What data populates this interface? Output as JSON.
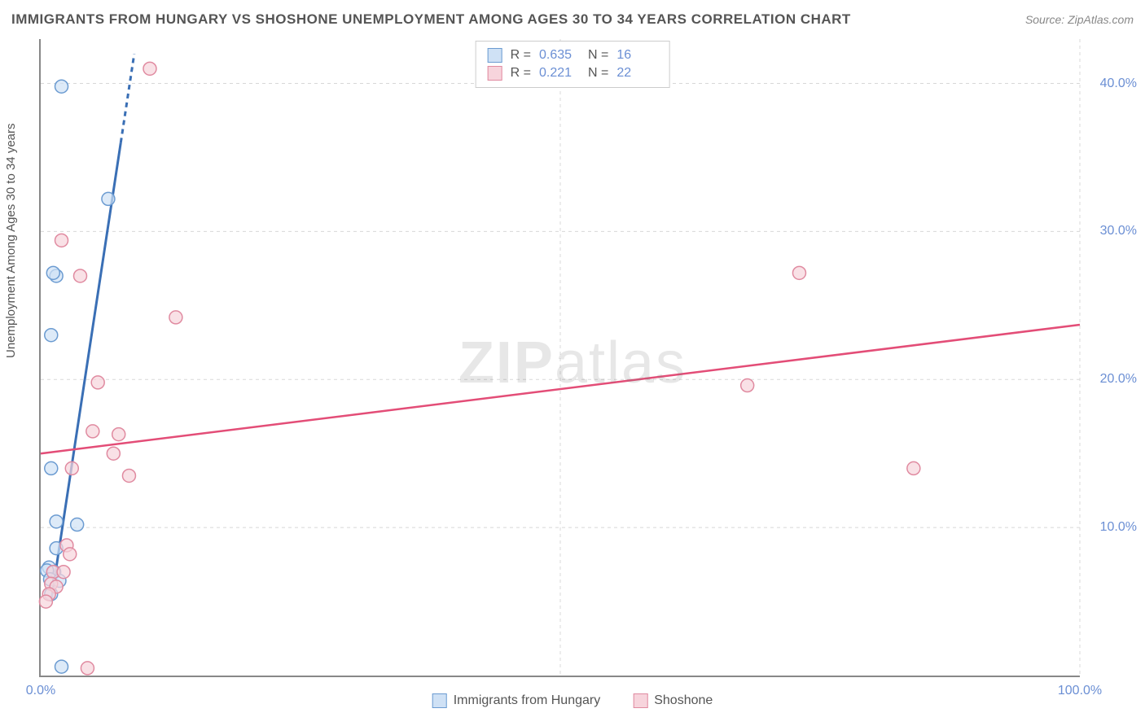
{
  "title": "IMMIGRANTS FROM HUNGARY VS SHOSHONE UNEMPLOYMENT AMONG AGES 30 TO 34 YEARS CORRELATION CHART",
  "source_label": "Source:",
  "source_value": "ZipAtlas.com",
  "y_axis_label": "Unemployment Among Ages 30 to 34 years",
  "watermark_bold": "ZIP",
  "watermark_light": "atlas",
  "chart": {
    "type": "scatter",
    "xlim": [
      0,
      100
    ],
    "ylim": [
      0,
      43
    ],
    "x_ticks": [
      0,
      50,
      100
    ],
    "x_tick_labels": [
      "0.0%",
      "",
      "100.0%"
    ],
    "y_ticks": [
      10,
      20,
      30,
      40
    ],
    "y_tick_labels": [
      "10.0%",
      "20.0%",
      "30.0%",
      "40.0%"
    ],
    "grid_color": "#d8d8d8",
    "grid_dash": "4,4",
    "background_color": "#ffffff",
    "marker_radius": 8,
    "marker_stroke_width": 1.5,
    "series": [
      {
        "name": "Immigrants from Hungary",
        "color_fill": "#cfe1f5",
        "color_stroke": "#6b9bd1",
        "line_color": "#3a6fb5",
        "line_width": 3,
        "R": "0.635",
        "N": "16",
        "trend": {
          "x1": 1.0,
          "y1": 5.0,
          "x2": 9.0,
          "y2": 42.0
        },
        "trend_dash_after_y": 36,
        "points": [
          {
            "x": 2.0,
            "y": 39.8
          },
          {
            "x": 6.5,
            "y": 32.2
          },
          {
            "x": 1.5,
            "y": 27.0
          },
          {
            "x": 1.2,
            "y": 27.2
          },
          {
            "x": 1.0,
            "y": 23.0
          },
          {
            "x": 1.0,
            "y": 14.0
          },
          {
            "x": 1.5,
            "y": 10.4
          },
          {
            "x": 3.5,
            "y": 10.2
          },
          {
            "x": 1.5,
            "y": 8.6
          },
          {
            "x": 0.8,
            "y": 7.3
          },
          {
            "x": 1.3,
            "y": 7.0
          },
          {
            "x": 0.6,
            "y": 7.1
          },
          {
            "x": 0.9,
            "y": 6.5
          },
          {
            "x": 1.8,
            "y": 6.4
          },
          {
            "x": 1.0,
            "y": 5.5
          },
          {
            "x": 2.0,
            "y": 0.6
          }
        ]
      },
      {
        "name": "Shoshone",
        "color_fill": "#f7d4dc",
        "color_stroke": "#e08aa0",
        "line_color": "#e34d77",
        "line_width": 2.5,
        "R": "0.221",
        "N": "22",
        "trend": {
          "x1": 0.0,
          "y1": 15.0,
          "x2": 100.0,
          "y2": 23.7
        },
        "points": [
          {
            "x": 10.5,
            "y": 41.0
          },
          {
            "x": 2.0,
            "y": 29.4
          },
          {
            "x": 3.8,
            "y": 27.0
          },
          {
            "x": 73.0,
            "y": 27.2
          },
          {
            "x": 13.0,
            "y": 24.2
          },
          {
            "x": 5.5,
            "y": 19.8
          },
          {
            "x": 68.0,
            "y": 19.6
          },
          {
            "x": 5.0,
            "y": 16.5
          },
          {
            "x": 7.5,
            "y": 16.3
          },
          {
            "x": 7.0,
            "y": 15.0
          },
          {
            "x": 3.0,
            "y": 14.0
          },
          {
            "x": 8.5,
            "y": 13.5
          },
          {
            "x": 84.0,
            "y": 14.0
          },
          {
            "x": 2.5,
            "y": 8.8
          },
          {
            "x": 2.8,
            "y": 8.2
          },
          {
            "x": 1.2,
            "y": 7.0
          },
          {
            "x": 2.2,
            "y": 7.0
          },
          {
            "x": 1.0,
            "y": 6.2
          },
          {
            "x": 1.5,
            "y": 6.0
          },
          {
            "x": 0.8,
            "y": 5.5
          },
          {
            "x": 0.5,
            "y": 5.0
          },
          {
            "x": 4.5,
            "y": 0.5
          }
        ]
      }
    ]
  },
  "legend_labels": {
    "R": "R =",
    "N": "N ="
  }
}
